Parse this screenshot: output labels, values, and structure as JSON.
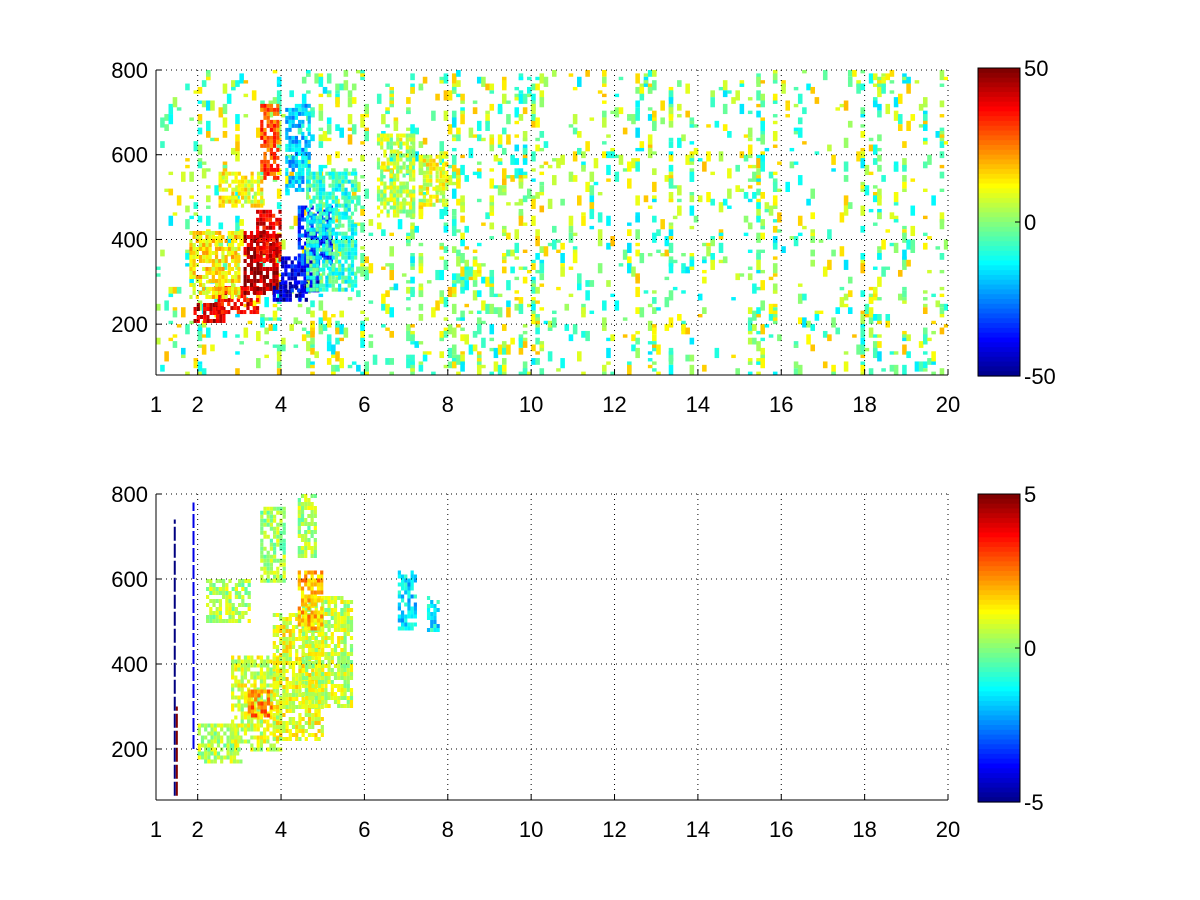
{
  "chart_data": [
    {
      "type": "heatmap",
      "title": "",
      "xlabel": "",
      "ylabel": "",
      "xlim": [
        1,
        20
      ],
      "ylim": [
        80,
        800
      ],
      "xticks": [
        1,
        2,
        4,
        6,
        8,
        10,
        12,
        14,
        16,
        18,
        20
      ],
      "xtick_labels": [
        "1",
        "2",
        "4",
        "6",
        "8",
        "10",
        "12",
        "14",
        "16",
        "18",
        "20"
      ],
      "yticks": [
        200,
        400,
        600,
        800
      ],
      "ytick_labels": [
        "200",
        "400",
        "600",
        "800"
      ],
      "grid": true,
      "colormap": "jet",
      "colorbar": {
        "min": -50,
        "max": 50,
        "ticks": [
          50,
          0,
          -50
        ],
        "tick_labels": [
          "50",
          "0",
          "-50"
        ]
      },
      "bands": [
        {
          "x0": 1.9,
          "x1": 2.6,
          "y0": 210,
          "y1": 250,
          "value": 42
        },
        {
          "x0": 2.4,
          "x1": 3.4,
          "y0": 230,
          "y1": 290,
          "value": 38
        },
        {
          "x0": 3.1,
          "x1": 3.9,
          "y0": 270,
          "y1": 420,
          "value": 45
        },
        {
          "x0": 3.4,
          "x1": 4.0,
          "y0": 350,
          "y1": 470,
          "value": 40
        },
        {
          "x0": 3.5,
          "x1": 3.9,
          "y0": 550,
          "y1": 720,
          "value": 30
        },
        {
          "x0": 1.8,
          "x1": 3.0,
          "y0": 260,
          "y1": 420,
          "value": 15
        },
        {
          "x0": 2.5,
          "x1": 3.5,
          "y0": 480,
          "y1": 560,
          "value": 12
        },
        {
          "x0": 3.8,
          "x1": 4.6,
          "y0": 260,
          "y1": 300,
          "value": -45
        },
        {
          "x0": 4.0,
          "x1": 4.9,
          "y0": 280,
          "y1": 360,
          "value": -38
        },
        {
          "x0": 4.4,
          "x1": 5.2,
          "y0": 340,
          "y1": 480,
          "value": -32
        },
        {
          "x0": 4.1,
          "x1": 4.7,
          "y0": 520,
          "y1": 720,
          "value": -18
        },
        {
          "x0": 4.6,
          "x1": 5.8,
          "y0": 280,
          "y1": 560,
          "value": -8
        },
        {
          "x0": 6.3,
          "x1": 7.2,
          "y0": 460,
          "y1": 650,
          "value": 5
        },
        {
          "x0": 7.4,
          "x1": 8.0,
          "y0": 480,
          "y1": 600,
          "value": 10
        }
      ],
      "scatter_density": 0.1
    },
    {
      "type": "heatmap",
      "title": "",
      "xlabel": "",
      "ylabel": "",
      "xlim": [
        1,
        20
      ],
      "ylim": [
        80,
        800
      ],
      "xticks": [
        1,
        2,
        4,
        6,
        8,
        10,
        12,
        14,
        16,
        18,
        20
      ],
      "xtick_labels": [
        "1",
        "2",
        "4",
        "6",
        "8",
        "10",
        "12",
        "14",
        "16",
        "18",
        "20"
      ],
      "yticks": [
        200,
        400,
        600,
        800
      ],
      "ytick_labels": [
        "200",
        "400",
        "600",
        "800"
      ],
      "grid": true,
      "colormap": "jet",
      "colorbar": {
        "min": -5,
        "max": 5,
        "ticks": [
          5,
          0,
          -5
        ],
        "tick_labels": [
          "5",
          "0",
          "-5"
        ]
      },
      "bands": [
        {
          "x0": 2.0,
          "x1": 3.0,
          "y0": 170,
          "y1": 260,
          "value": 0.5
        },
        {
          "x0": 2.8,
          "x1": 4.0,
          "y0": 200,
          "y1": 420,
          "value": 0.8
        },
        {
          "x0": 3.2,
          "x1": 3.8,
          "y0": 280,
          "y1": 340,
          "value": 2.5
        },
        {
          "x0": 3.8,
          "x1": 5.0,
          "y0": 220,
          "y1": 520,
          "value": 1.0
        },
        {
          "x0": 4.5,
          "x1": 5.7,
          "y0": 300,
          "y1": 560,
          "value": 0.7
        },
        {
          "x0": 4.4,
          "x1": 5.0,
          "y0": 480,
          "y1": 620,
          "value": 2.0
        },
        {
          "x0": 3.5,
          "x1": 4.1,
          "y0": 600,
          "y1": 770,
          "value": 0.3
        },
        {
          "x0": 4.4,
          "x1": 4.8,
          "y0": 650,
          "y1": 800,
          "value": 0.4
        },
        {
          "x0": 2.2,
          "x1": 3.2,
          "y0": 500,
          "y1": 600,
          "value": 0.5
        },
        {
          "x0": 6.8,
          "x1": 7.2,
          "y0": 480,
          "y1": 620,
          "value": -1.6
        },
        {
          "x0": 7.5,
          "x1": 7.8,
          "y0": 480,
          "y1": 560,
          "value": -1.4
        }
      ],
      "lines": [
        {
          "x": 1.45,
          "y0": 90,
          "y1": 740,
          "value": -5
        },
        {
          "x": 1.9,
          "y0": 200,
          "y1": 780,
          "value": -4
        },
        {
          "x": 1.5,
          "y0": 90,
          "y1": 300,
          "value": 5
        }
      ],
      "scatter_density": 0.0
    }
  ]
}
